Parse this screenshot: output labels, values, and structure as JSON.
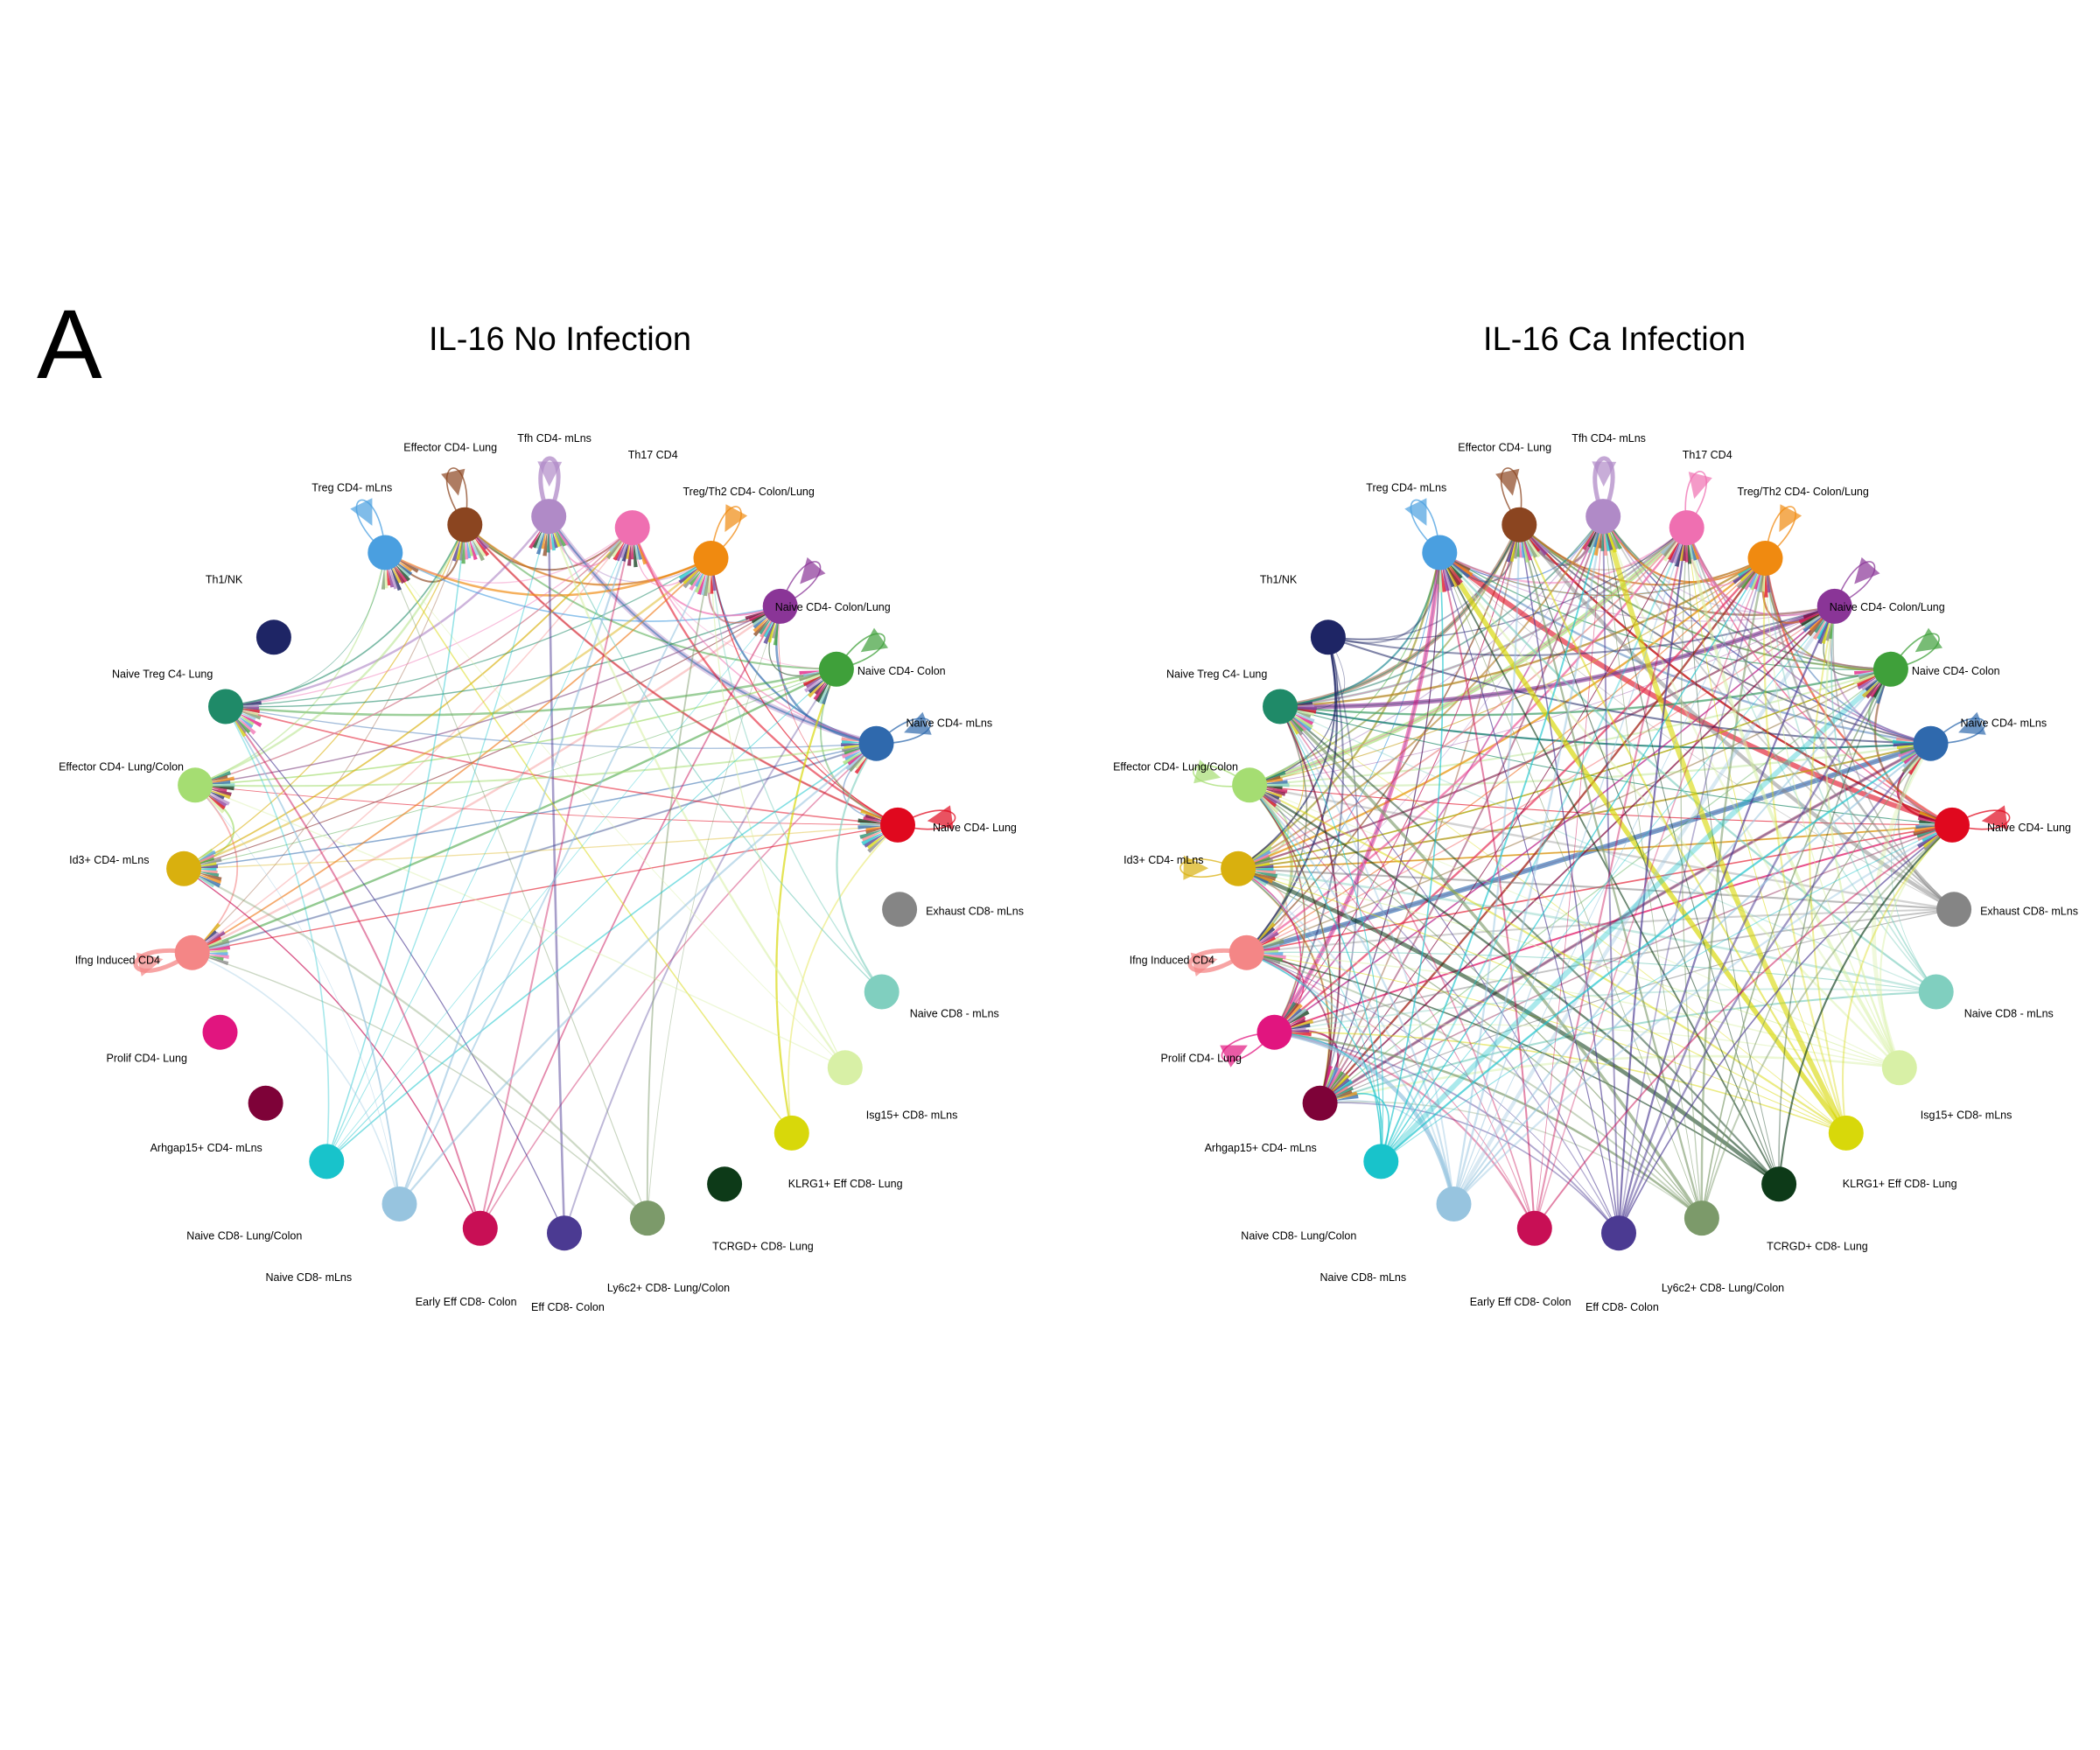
{
  "figure": {
    "panel_letter": "A",
    "panels": [
      {
        "title": "IL-16 No Infection"
      },
      {
        "title": "IL-16 Ca Infection"
      }
    ]
  },
  "nodes": [
    {
      "label": "Treg CD4- mLns",
      "color": "#4a9fe0"
    },
    {
      "label": "Effector CD4- Lung",
      "color": "#8b4520"
    },
    {
      "label": "Tfh CD4- mLns",
      "color": "#b08ac7"
    },
    {
      "label": "Th17 CD4",
      "color": "#ef6fb1"
    },
    {
      "label": "Treg/Th2 CD4- Colon/Lung",
      "color": "#f08a10"
    },
    {
      "label": "Naive CD4- Colon/Lung",
      "color": "#8a3597"
    },
    {
      "label": "Naive CD4- Colon",
      "color": "#3fa03a"
    },
    {
      "label": "Naive CD4- mLns",
      "color": "#2f69ad"
    },
    {
      "label": "Naive CD4- Lung",
      "color": "#e0081e"
    },
    {
      "label": "Exhaust CD8- mLns",
      "color": "#858585"
    },
    {
      "label": "Naive CD8 - mLns",
      "color": "#80cfbf"
    },
    {
      "label": "Isg15+ CD8- mLns",
      "color": "#d8f0a6"
    },
    {
      "label": "KLRG1+ Eff CD8- Lung",
      "color": "#d8d80a"
    },
    {
      "label": "TCRGD+ CD8- Lung",
      "color": "#0d3a18"
    },
    {
      "label": "Ly6c2+ CD8- Lung/Colon",
      "color": "#7c9a6a"
    },
    {
      "label": "Eff CD8- Colon",
      "color": "#4b3a92"
    },
    {
      "label": "Early Eff CD8- Colon",
      "color": "#c80f55"
    },
    {
      "label": "Naive CD8- mLns",
      "color": "#97c4df"
    },
    {
      "label": "Naive CD8- Lung/Colon",
      "color": "#18c3cb"
    },
    {
      "label": "Arhgap15+ CD4- mLns",
      "color": "#7e0238"
    },
    {
      "label": "Prolif CD4- Lung",
      "color": "#e1157f"
    },
    {
      "label": "Ifng Induced CD4",
      "color": "#f48686"
    },
    {
      "label": "Id3+ CD4- mLns",
      "color": "#d9b00e"
    },
    {
      "label": "Effector CD4- Lung/Colon",
      "color": "#a5dd72"
    },
    {
      "label": "Naive Treg C4- Lung",
      "color": "#1f8a68"
    },
    {
      "label": "Th1/NK",
      "color": "#1e2565"
    }
  ],
  "networks": [
    {
      "panel": "IL-16 No Infection",
      "self_loops": [
        "Treg CD4- mLns",
        "Effector CD4- Lung",
        "Tfh CD4- mLns",
        "Treg/Th2 CD4- Colon/Lung",
        "Naive CD4- Colon/Lung",
        "Naive CD4- Colon",
        "Naive CD4- mLns",
        "Naive CD4- Lung",
        "Ifng Induced CD4"
      ],
      "senders": [
        "Ifng Induced CD4",
        "Effector CD4- Lung",
        "Tfh CD4- mLns",
        "Naive CD4- mLns",
        "Naive CD4- Lung",
        "Treg CD4- mLns",
        "Naive CD4- Colon",
        "Effector CD4- Lung/Colon",
        "Id3+ CD4- mLns",
        "Naive Treg C4- Lung",
        "Naive CD4- Colon/Lung",
        "Treg/Th2 CD4- Colon/Lung",
        "Th17 CD4",
        "Early Eff CD8- Colon",
        "Eff CD8- Colon",
        "Ly6c2+ CD8- Lung/Colon",
        "KLRG1+ Eff CD8- Lung",
        "Isg15+ CD8- mLns",
        "Naive CD8 - mLns",
        "Naive CD8- Lung/Colon",
        "Naive CD8- mLns"
      ],
      "receivers": [
        "Ifng Induced CD4",
        "Effector CD4- Lung",
        "Tfh CD4- mLns",
        "Th17 CD4",
        "Treg/Th2 CD4- Colon/Lung",
        "Naive CD4- Colon/Lung",
        "Naive CD4- Colon",
        "Naive CD4- mLns",
        "Naive CD4- Lung",
        "Treg CD4- mLns",
        "Naive Treg C4- Lung",
        "Effector CD4- Lung/Colon",
        "Id3+ CD4- mLns"
      ]
    },
    {
      "panel": "IL-16 Ca Infection",
      "self_loops": [
        "Treg CD4- mLns",
        "Effector CD4- Lung",
        "Tfh CD4- mLns",
        "Th17 CD4",
        "Treg/Th2 CD4- Colon/Lung",
        "Naive CD4- Colon/Lung",
        "Naive CD4- Colon",
        "Naive CD4- mLns",
        "Naive CD4- Lung",
        "Ifng Induced CD4",
        "Prolif CD4- Lung",
        "Id3+ CD4- mLns",
        "Effector CD4- Lung/Colon"
      ],
      "senders": [
        "Ifng Induced CD4",
        "Effector CD4- Lung",
        "Tfh CD4- mLns",
        "Naive CD4- mLns",
        "Naive CD4- Lung",
        "Treg CD4- mLns",
        "Naive CD4- Colon",
        "Effector CD4- Lung/Colon",
        "Id3+ CD4- mLns",
        "Naive Treg C4- Lung",
        "Naive CD4- Colon/Lung",
        "Treg/Th2 CD4- Colon/Lung",
        "Th17 CD4",
        "Th1/NK",
        "Prolif CD4- Lung",
        "Arhgap15+ CD4- mLns",
        "Exhaust CD8- mLns",
        "Naive CD8 - mLns",
        "Isg15+ CD8- mLns",
        "KLRG1+ Eff CD8- Lung",
        "TCRGD+ CD8- Lung",
        "Ly6c2+ CD8- Lung/Colon",
        "Eff CD8- Colon",
        "Early Eff CD8- Colon",
        "Naive CD8- mLns",
        "Naive CD8- Lung/Colon"
      ],
      "receivers": [
        "Ifng Induced CD4",
        "Effector CD4- Lung",
        "Tfh CD4- mLns",
        "Th17 CD4",
        "Treg/Th2 CD4- Colon/Lung",
        "Naive CD4- Colon/Lung",
        "Naive CD4- Colon",
        "Naive CD4- mLns",
        "Naive CD4- Lung",
        "Treg CD4- mLns",
        "Naive Treg C4- Lung",
        "Effector CD4- Lung/Colon",
        "Id3+ CD4- mLns",
        "Prolif CD4- Lung",
        "Arhgap15+ CD4- mLns"
      ]
    }
  ]
}
